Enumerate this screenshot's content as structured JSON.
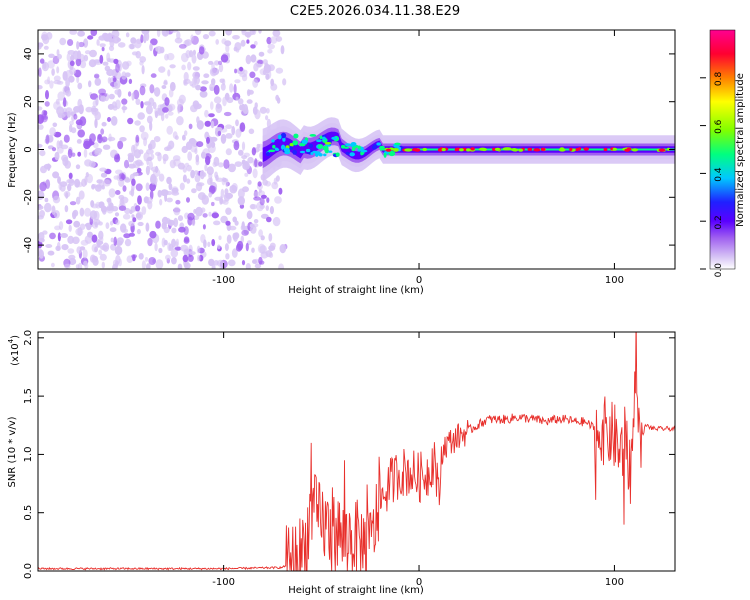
{
  "title": "C2E5.2026.034.11.38.E29",
  "chart_data": [
    {
      "type": "heatmap",
      "xlabel": "Height of straight line (km)",
      "ylabel": "Frequency (Hz)",
      "xlim": [
        -195,
        131
      ],
      "ylim": [
        -50,
        50
      ],
      "x_ticks": [
        -100,
        0,
        100
      ],
      "y_ticks": [
        -40,
        -20,
        0,
        20,
        40
      ],
      "colorbar": {
        "label": "Normalized spectral amplitude",
        "range": [
          0.0,
          1.0
        ],
        "ticks": [
          0.0,
          0.2,
          0.4,
          0.6,
          0.8
        ],
        "colormap": [
          "#ffffff",
          "#d7c4f5",
          "#a060f0",
          "#5a00ff",
          "#2020ff",
          "#00c8ff",
          "#00ff80",
          "#80ff00",
          "#ffff00",
          "#ff8000",
          "#ff0030",
          "#ff0090"
        ]
      },
      "features": {
        "noise_region_x": [
          -195,
          -67
        ],
        "noise_freq_range": [
          -50,
          50
        ],
        "signal_band_center_hz": 0,
        "signal_band_onset_x": -80,
        "signal_band_halfwidth_hz": [
          6,
          2
        ]
      }
    },
    {
      "type": "line",
      "xlabel": "Height of straight line (km)",
      "ylabel": "SNR (10 * v/v)",
      "y_multiplier": "(x10",
      "y_multiplier_exp": "4",
      "xlim": [
        -195,
        131
      ],
      "ylim": [
        0,
        2.05
      ],
      "x_ticks": [
        -100,
        0,
        100
      ],
      "y_ticks": [
        0.0,
        0.5,
        1.0,
        1.5,
        2.0
      ],
      "y_tick_labels": [
        "0.0",
        "0.5",
        "1.0",
        "1.5",
        "2.0"
      ],
      "series": [
        {
          "color": "#e8302c",
          "x": [
            -195,
            -150,
            -100,
            -70,
            -62,
            -58,
            -55,
            -52,
            -48,
            -45,
            -42,
            -38,
            -35,
            -30,
            -25,
            -20,
            -15,
            -10,
            -5,
            0,
            5,
            8,
            10,
            12,
            15,
            20,
            25,
            30,
            35,
            40,
            45,
            50,
            55,
            60,
            65,
            70,
            75,
            80,
            85,
            90,
            95,
            100,
            103,
            106,
            108,
            110,
            111,
            113,
            116,
            120,
            125,
            131
          ],
          "values": [
            0.02,
            0.02,
            0.02,
            0.03,
            0.1,
            0.25,
            0.55,
            0.45,
            0.4,
            0.3,
            0.35,
            0.25,
            0.3,
            0.25,
            0.2,
            0.6,
            0.75,
            0.85,
            0.85,
            0.8,
            0.85,
            1.0,
            0.6,
            1.05,
            1.1,
            1.15,
            1.2,
            1.25,
            1.3,
            1.3,
            1.3,
            1.32,
            1.31,
            1.3,
            1.28,
            1.3,
            1.3,
            1.28,
            1.28,
            1.22,
            1.2,
            1.15,
            1.0,
            1.15,
            0.8,
            1.3,
            2.0,
            1.1,
            1.25,
            1.22,
            1.22,
            1.22
          ]
        }
      ]
    }
  ]
}
